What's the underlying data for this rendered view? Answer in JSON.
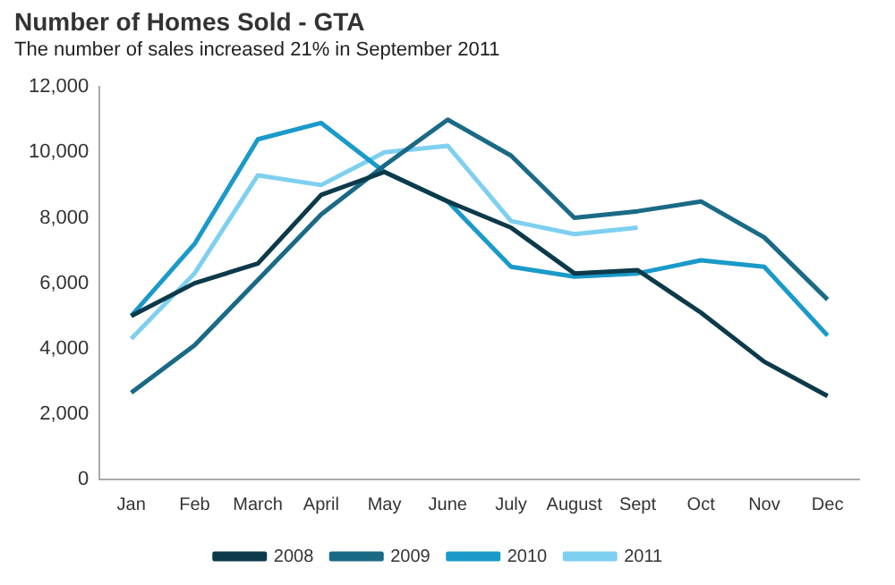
{
  "chart_data": {
    "type": "line",
    "title": "Number of Homes Sold - GTA",
    "subtitle": "The number of sales increased 21% in September 2011",
    "categories": [
      "Jan",
      "Feb",
      "March",
      "April",
      "May",
      "June",
      "July",
      "August",
      "Sept",
      "Oct",
      "Nov",
      "Dec"
    ],
    "series": [
      {
        "name": "2008",
        "color": "#0d3a4a",
        "values": [
          5000,
          6000,
          6600,
          8700,
          9400,
          8500,
          7700,
          6300,
          6400,
          5100,
          3600,
          2550
        ]
      },
      {
        "name": "2009",
        "color": "#1a6a85",
        "values": [
          2650,
          4100,
          6100,
          8100,
          9600,
          11000,
          9900,
          8000,
          8200,
          8500,
          7400,
          5500
        ]
      },
      {
        "name": "2010",
        "color": "#1a9ac9",
        "values": [
          5000,
          7200,
          10400,
          10900,
          9400,
          8500,
          6500,
          6200,
          6300,
          6700,
          6500,
          4400
        ]
      },
      {
        "name": "2011",
        "color": "#7fd0f0",
        "values": [
          4300,
          6300,
          9300,
          9000,
          10000,
          10200,
          7900,
          7500,
          7700,
          null,
          null,
          null
        ]
      }
    ],
    "ylim": [
      0,
      12000
    ],
    "yticks": [
      0,
      {
        "value": 2000,
        "label": "2,000"
      },
      {
        "value": 4000,
        "label": "4,000"
      },
      {
        "value": 6000,
        "label": "6,000"
      },
      {
        "value": 8000,
        "label": "8,000"
      },
      {
        "value": 10000,
        "label": "10,000"
      },
      {
        "value": 12000,
        "label": "12,000"
      }
    ],
    "grid": false,
    "legend": "bottom",
    "marker": "none",
    "line_style": "solid"
  }
}
